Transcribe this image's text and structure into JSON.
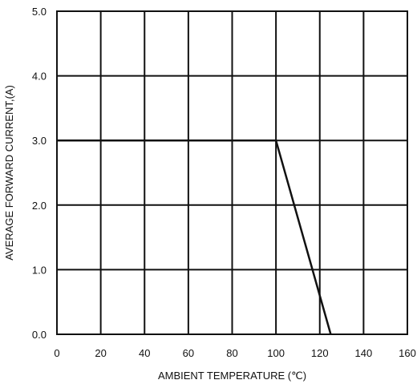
{
  "chart_data": {
    "type": "line",
    "title": "",
    "xlabel": "AMBIENT TEMPERATURE (℃)",
    "ylabel": "AVERAGE FORWARD CURRENT,(A)",
    "xlim": [
      0,
      160
    ],
    "ylim": [
      0,
      5
    ],
    "x_ticks": [
      0,
      20,
      40,
      60,
      80,
      100,
      120,
      140,
      160
    ],
    "y_ticks": [
      0,
      1,
      2,
      3,
      4,
      5
    ],
    "x_tick_labels": [
      "0",
      "20",
      "40",
      "60",
      "80",
      "100",
      "120",
      "140",
      "160"
    ],
    "y_tick_labels": [
      "0.0",
      "1.0",
      "2.0",
      "3.0",
      "4.0",
      "5.0"
    ],
    "grid": true,
    "legend": "none",
    "series": [
      {
        "x": [
          0,
          100,
          125
        ],
        "y": [
          3.0,
          3.0,
          0.0
        ],
        "color": "#111111"
      }
    ]
  }
}
